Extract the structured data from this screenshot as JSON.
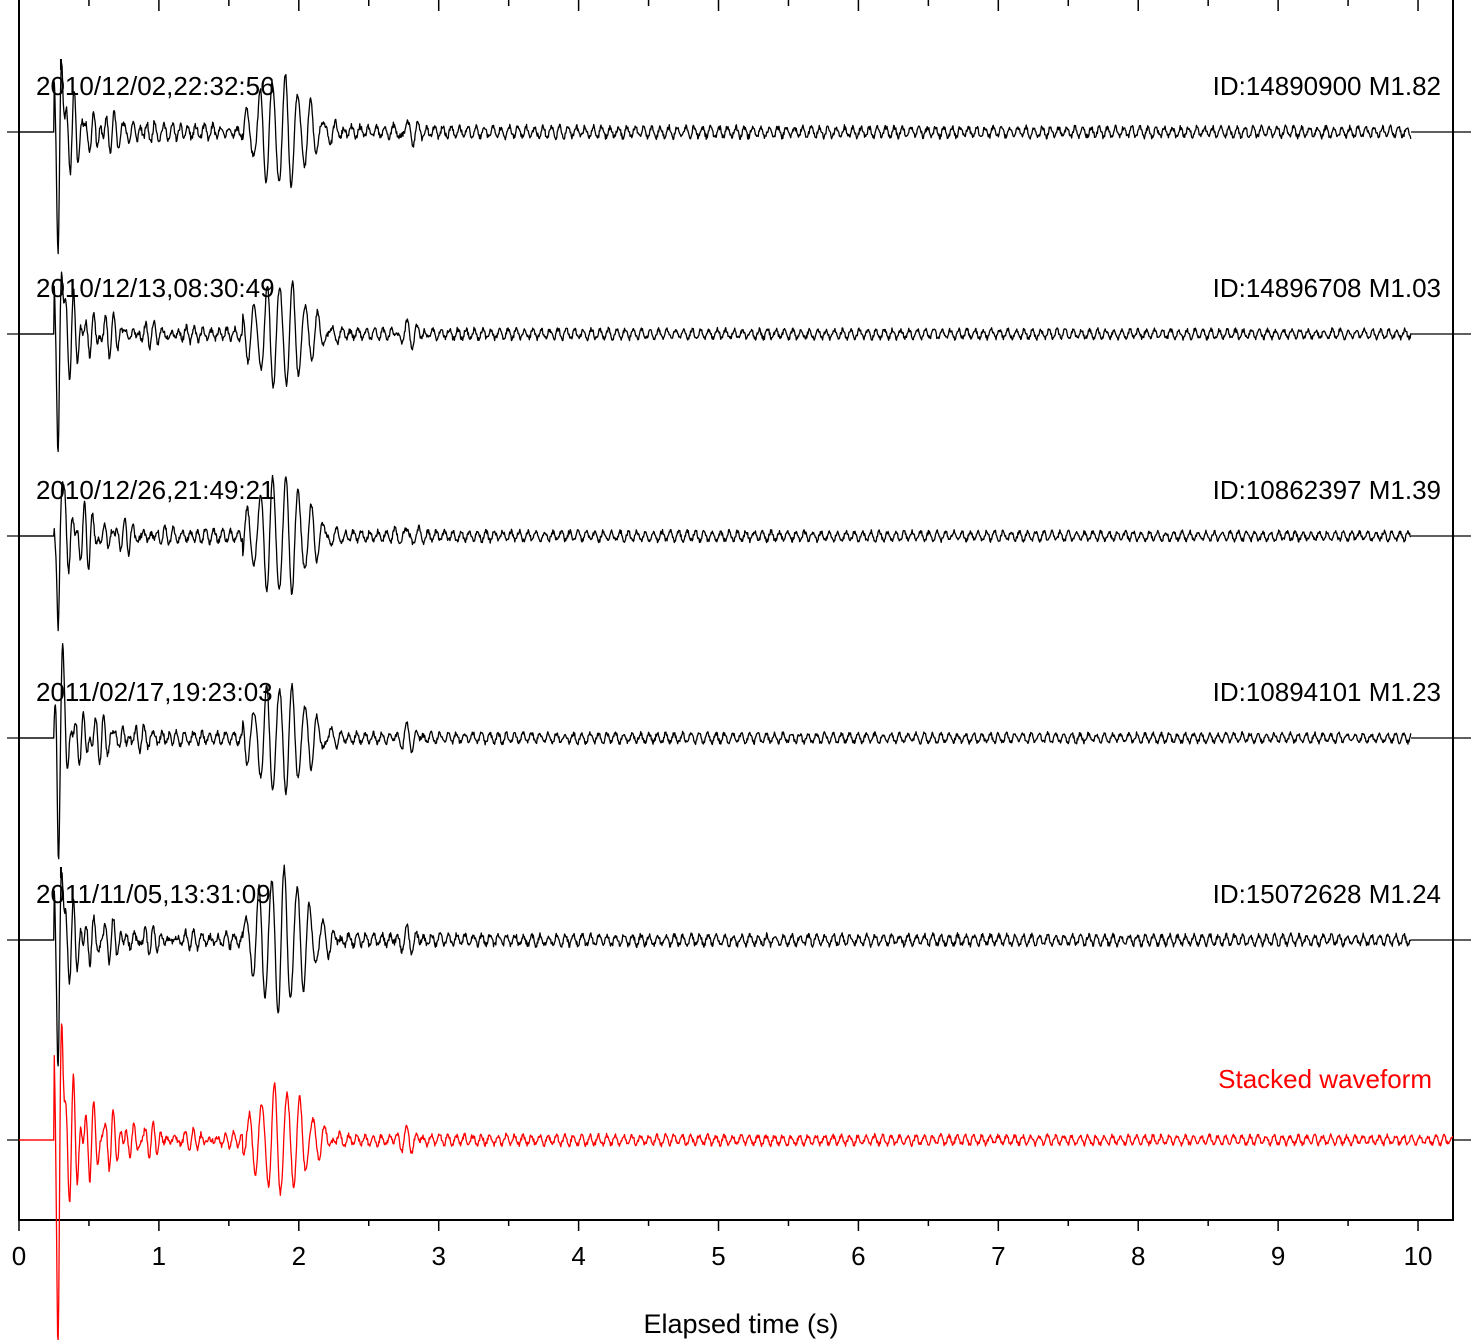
{
  "chart_data": {
    "type": "line",
    "xlabel": "Elapsed time (s)",
    "ylabel": "",
    "xlim": [
      0,
      10.25
    ],
    "x_ticks": [
      "0",
      "1",
      "2",
      "3",
      "4",
      "5",
      "6",
      "7",
      "8",
      "9",
      "10"
    ],
    "minor_tick_step": 0.5,
    "grid": false,
    "trace_color": "#000000",
    "stack_color": "#ff0000",
    "series": [
      {
        "date": "2010/12/02,22:32:56",
        "event": "ID:14890900 M1.82",
        "onset": 0.25,
        "first_motion": -1,
        "peak": 0.6,
        "pick_marker": true,
        "amp_s": 0.58,
        "late": 0.09,
        "seed": 11
      },
      {
        "date": "2010/12/13,08:30:49",
        "event": "ID:14896708 M1.03",
        "onset": 0.25,
        "first_motion": -1,
        "peak": 0.63,
        "pick_marker": false,
        "amp_s": 0.55,
        "late": 0.08,
        "seed": 23
      },
      {
        "date": "2010/12/26,21:49:21",
        "event": "ID:10862397 M1.39",
        "onset": 0.25,
        "first_motion": -1,
        "peak": 0.62,
        "pick_marker": false,
        "amp_s": 0.62,
        "late": 0.08,
        "seed": 37
      },
      {
        "date": "2011/02/17,19:23:03",
        "event": "ID:10894101 M1.23",
        "onset": 0.25,
        "first_motion": -1,
        "peak": 0.62,
        "pick_marker": false,
        "amp_s": 0.57,
        "late": 0.08,
        "seed": 51
      },
      {
        "date": "2011/11/05,13:31:09",
        "event": "ID:15072628 M1.24",
        "onset": 0.25,
        "first_motion": -1,
        "peak": 0.64,
        "pick_marker": true,
        "amp_s": 0.72,
        "late": 0.09,
        "seed": 67
      }
    ],
    "stack": {
      "label": "Stacked waveform",
      "onset": 0.25,
      "first_motion": -1,
      "peak": 1.0,
      "amp_s": 0.55,
      "late": 0.08,
      "seed": 89
    }
  }
}
